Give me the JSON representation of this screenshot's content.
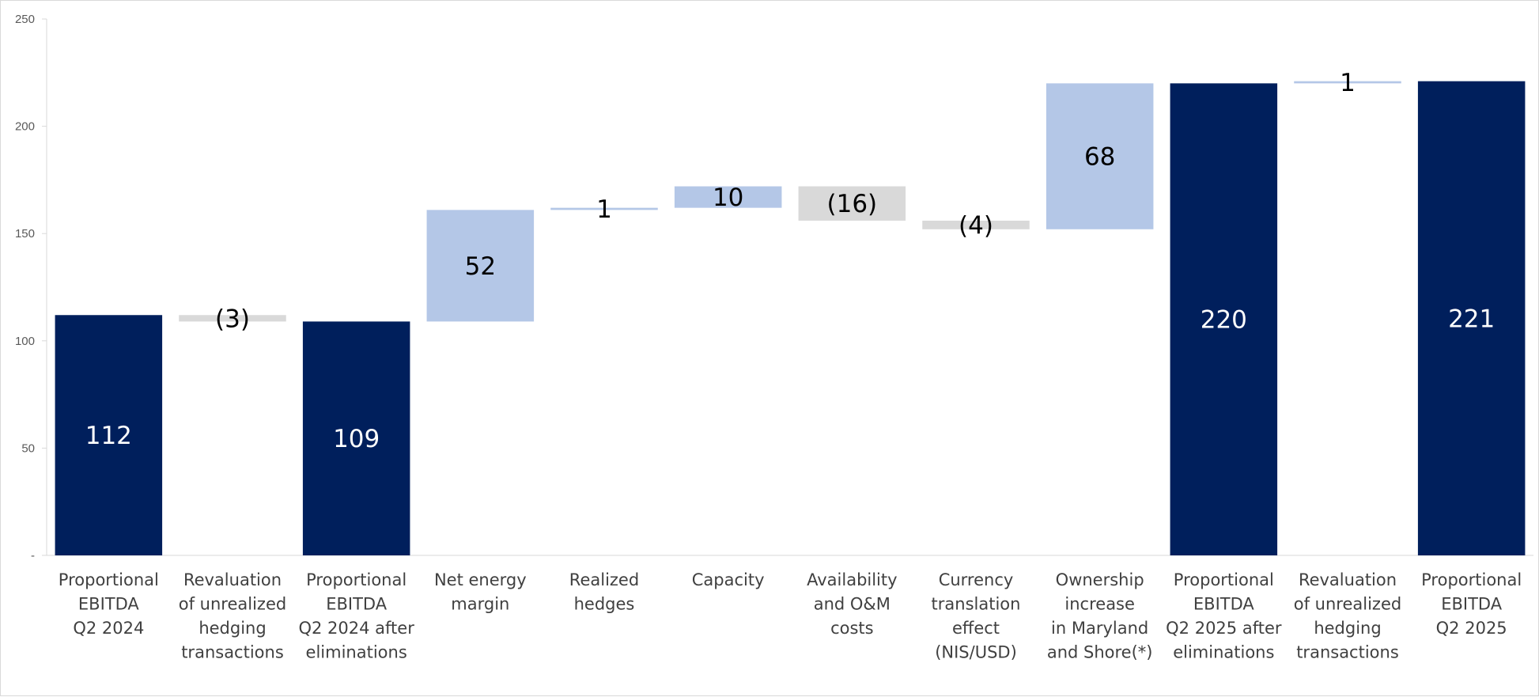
{
  "chart_data": {
    "type": "bar",
    "subtype": "waterfall",
    "title": "",
    "xlabel": "",
    "ylabel": "",
    "ylim": [
      0,
      250
    ],
    "yticks": [
      {
        "value": 0,
        "label": "-"
      },
      {
        "value": 50,
        "label": "50"
      },
      {
        "value": 100,
        "label": "100"
      },
      {
        "value": 150,
        "label": "150"
      },
      {
        "value": 200,
        "label": "200"
      },
      {
        "value": 250,
        "label": "250"
      }
    ],
    "grid": false,
    "legend": "none",
    "categories": [
      "Proportional EBITDA Q2 2024",
      "Revaluation of unrealized hedging transactions",
      "Proportional EBITDA Q2 2024 after eliminations",
      "Net energy margin",
      "Realized hedges",
      "Capacity",
      "Availability and O&M costs",
      "Currency translation effect (NIS/USD)",
      "Ownership increase in Maryland and Shore(*)",
      "Proportional EBITDA Q2 2025 after eliminations",
      "Revaluation of unrealized hedging transactions",
      "Proportional EBITDA Q2 2025"
    ],
    "category_lines": [
      [
        "Proportional",
        "EBITDA",
        "Q2 2024"
      ],
      [
        "Revaluation",
        "of unrealized",
        "hedging",
        "transactions"
      ],
      [
        "Proportional",
        "EBITDA",
        "Q2 2024 after",
        "eliminations"
      ],
      [
        "Net energy",
        "margin"
      ],
      [
        "Realized",
        "hedges"
      ],
      [
        "Capacity"
      ],
      [
        "Availability",
        "and O&M",
        "costs"
      ],
      [
        "Currency",
        "translation",
        "effect",
        "(NIS/USD)"
      ],
      [
        "Ownership",
        "increase",
        "in Maryland",
        "and Shore(*)"
      ],
      [
        "Proportional",
        "EBITDA",
        "Q2 2025 after",
        "eliminations"
      ],
      [
        "Revaluation",
        "of unrealized",
        "hedging",
        "transactions"
      ],
      [
        "Proportional",
        "EBITDA",
        "Q2 2025"
      ]
    ],
    "values": [
      112,
      -3,
      109,
      52,
      1,
      10,
      -16,
      -4,
      68,
      220,
      1,
      221
    ],
    "kinds": [
      "total",
      "change",
      "total",
      "change",
      "change",
      "change",
      "change",
      "change",
      "change",
      "total",
      "change",
      "total"
    ],
    "labels": [
      "112",
      "(3)",
      "109",
      "52",
      "1",
      "10",
      "(16)",
      "(4)",
      "68",
      "220",
      "1",
      "221"
    ],
    "colors": {
      "total": "#001f5c",
      "increase": "#b4c7e7",
      "decrease": "#d9d9d9",
      "total_label": "#ffffff",
      "change_label": "#000000",
      "axis": "#d9d9d9",
      "tick": "#595959",
      "category": "#404040"
    }
  }
}
